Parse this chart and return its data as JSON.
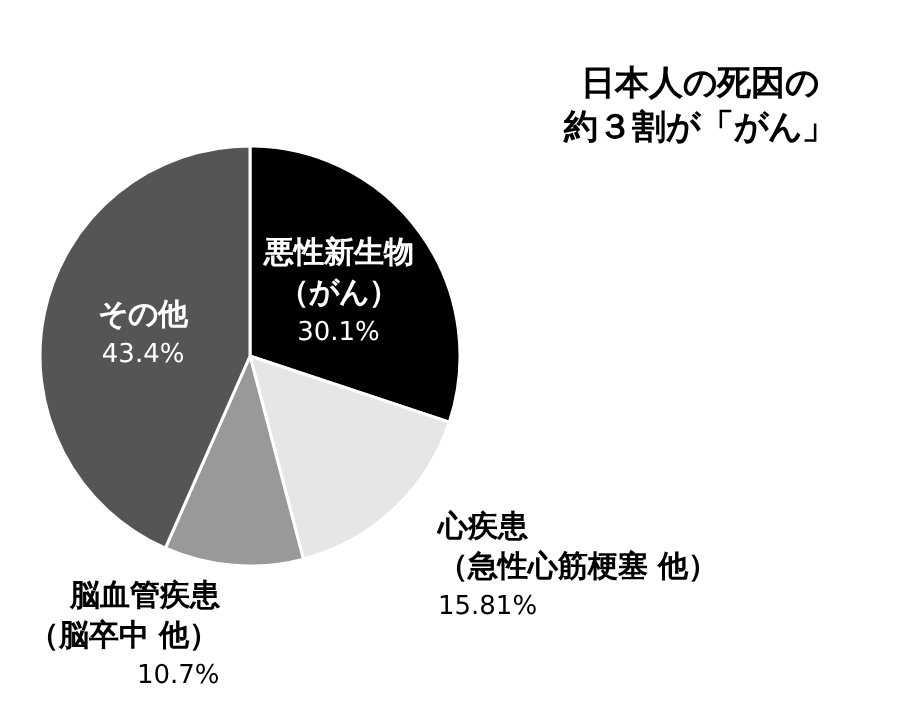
{
  "chart_data": {
    "type": "pie",
    "categories": [
      "悪性新生物（がん）",
      "心疾患（急性心筋梗塞 他）",
      "脳血管疾患（脳卒中 他）",
      "その他"
    ],
    "values": [
      30.1,
      15.81,
      10.7,
      43.4
    ],
    "value_labels": [
      "30.1%",
      "15.81%",
      "10.7%",
      "43.4%"
    ],
    "colors": [
      "#000000",
      "#e6e6e6",
      "#999999",
      "#555555"
    ],
    "legend": false,
    "annotations": [
      "日本人の死因の約３割が「がん」"
    ]
  }
}
